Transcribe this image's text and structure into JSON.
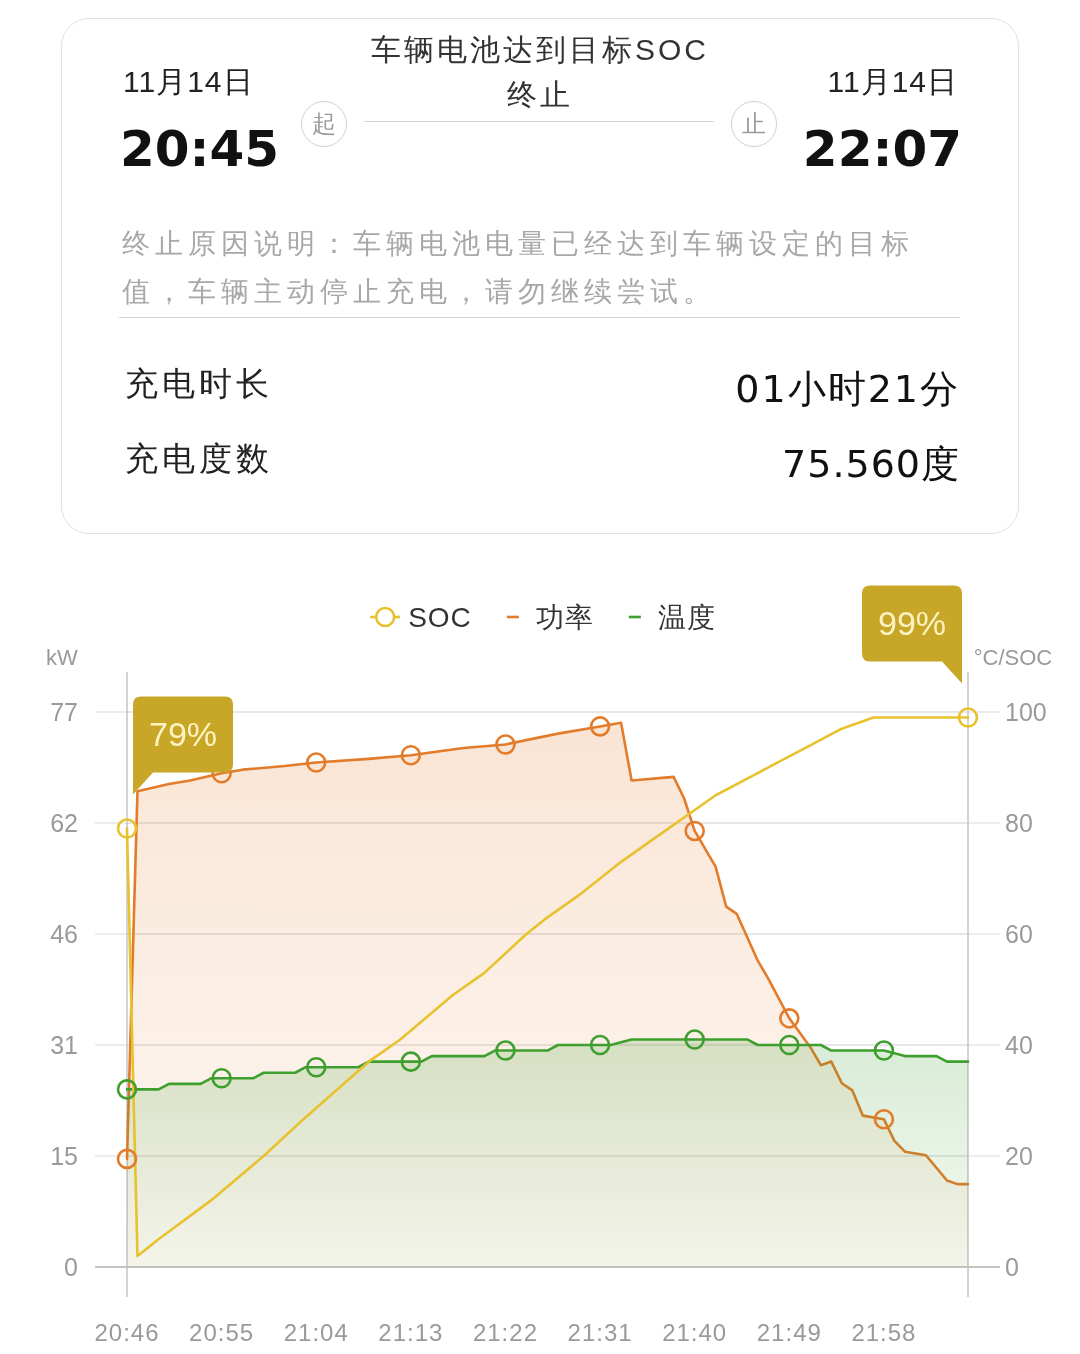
{
  "chart_data": [
    {
      "type": "other",
      "title": "车辆电池达到目标SOC终止",
      "annotations": [
        "11月14日",
        "20:45",
        "起",
        "止",
        "11月14日",
        "22:07",
        "终止原因说明：车辆电池电量已经达到车辆设定的目标值，车辆主动停止充电，请勿继续尝试。",
        "充电时长",
        "01小时21分",
        "充电度数",
        "75.560度"
      ]
    },
    {
      "type": "line",
      "ylabel": "kW",
      "y2label": "°C/SOC",
      "legend": "top",
      "grid": "y",
      "xlim": [
        20.7667,
        22.1
      ],
      "xticks": [
        {
          "value": 20.7667,
          "label": "20:46"
        },
        {
          "value": 20.9167,
          "label": "20:55"
        },
        {
          "value": 21.0667,
          "label": "21:04"
        },
        {
          "value": 21.2167,
          "label": "21:13"
        },
        {
          "value": 21.3667,
          "label": "21:22"
        },
        {
          "value": 21.5167,
          "label": "21:31"
        },
        {
          "value": 21.6667,
          "label": "21:40"
        },
        {
          "value": 21.8167,
          "label": "21:49"
        },
        {
          "value": 21.9667,
          "label": "21:58"
        }
      ],
      "ylim": [
        0,
        77
      ],
      "yticks": [
        0,
        {
          "value": 15.4,
          "label": "15"
        },
        {
          "value": 30.8,
          "label": "31"
        },
        {
          "value": 46.2,
          "label": "46"
        },
        {
          "value": 61.6,
          "label": "62"
        },
        77
      ],
      "y2lim": [
        0,
        100
      ],
      "y2ticks": [
        0,
        20,
        40,
        60,
        80,
        100
      ],
      "annotations": [
        "79%",
        "99%"
      ],
      "series": [
        {
          "name": "SOC",
          "type": "line",
          "axis": "y2",
          "color": "#e8c22e",
          "x": [
            20.7667,
            20.7833,
            20.8167,
            20.9,
            20.9833,
            21.05,
            21.15,
            21.2,
            21.2833,
            21.3333,
            21.4,
            21.4333,
            21.4833,
            21.55,
            21.6,
            21.65,
            21.7,
            21.75,
            21.8,
            21.85,
            21.8833,
            21.9,
            21.95,
            22.1
          ],
          "values": [
            79,
            2,
            5,
            12,
            20,
            27,
            37,
            41,
            49,
            53,
            60,
            63,
            67,
            73,
            77,
            81,
            85,
            88,
            91,
            94,
            96,
            97,
            99,
            99
          ]
        },
        {
          "name": "功率",
          "type": "area",
          "color": "#e27b2a",
          "x": [
            20.7667,
            20.7833,
            20.8333,
            20.8667,
            20.9167,
            20.95,
            21.0167,
            21.0667,
            21.15,
            21.2167,
            21.3,
            21.3667,
            21.45,
            21.5167,
            21.55,
            21.5667,
            21.6333,
            21.65,
            21.6667,
            21.7,
            21.7167,
            21.7333,
            21.7667,
            21.7833,
            21.8167,
            21.85,
            21.8667,
            21.8833,
            21.9,
            21.9167,
            21.9333,
            21.9667,
            21.9833,
            22,
            22.0333,
            22.0667,
            22.0833,
            22.1
          ],
          "values": [
            15,
            66,
            67,
            67.5,
            68.5,
            69,
            69.5,
            70,
            70.5,
            71,
            72,
            72.5,
            74,
            75,
            75.5,
            67.5,
            68,
            65,
            60.5,
            55.5,
            50,
            49,
            42.5,
            40,
            34.5,
            30.5,
            28,
            28.5,
            25.5,
            24.5,
            21,
            20.5,
            17.5,
            16,
            15.5,
            12,
            11.5,
            11.5
          ]
        },
        {
          "name": "温度",
          "type": "area",
          "axis": "y2",
          "color": "#3e9e2e",
          "x": [
            20.7667,
            20.8167,
            20.8333,
            20.8833,
            20.9,
            20.9167,
            20.9667,
            20.9833,
            21.0333,
            21.05,
            21.0667,
            21.1333,
            21.15,
            21.2167,
            21.2333,
            21.25,
            21.3333,
            21.35,
            21.3667,
            21.4333,
            21.45,
            21.5167,
            21.5333,
            21.5667,
            21.6667,
            21.75,
            21.7667,
            21.8167,
            21.8667,
            21.8833,
            21.9667,
            22,
            22.05,
            22.0667,
            22.1
          ],
          "values": [
            32,
            32,
            33,
            33,
            34,
            34,
            34,
            35,
            35,
            36,
            36,
            36,
            37,
            37,
            37,
            38,
            38,
            39,
            39,
            39,
            40,
            40,
            40,
            41,
            41,
            41,
            40,
            40,
            40,
            39,
            39,
            38,
            38,
            37,
            37
          ]
        },
        {
          "type": "scatter",
          "axis": "y2",
          "color": "#e8c22e",
          "marker": "circle",
          "x": [
            20.7667,
            22.1
          ],
          "values": [
            79,
            99
          ]
        },
        {
          "type": "scatter",
          "color": "#e27b2a",
          "marker": "circle",
          "x": [
            20.7667,
            20.9167,
            21.0667,
            21.2167,
            21.3667,
            21.5167,
            21.6667,
            21.8167,
            21.9667
          ],
          "values": [
            15,
            68.5,
            70,
            71,
            72.5,
            75,
            60.5,
            34.5,
            20.5
          ]
        },
        {
          "type": "scatter",
          "axis": "y2",
          "color": "#3e9e2e",
          "marker": "circle",
          "x": [
            20.7667,
            20.9167,
            21.0667,
            21.2167,
            21.3667,
            21.5167,
            21.6667,
            21.8167,
            21.9667
          ],
          "values": [
            32,
            34,
            36,
            37,
            39,
            40,
            41,
            40,
            39
          ]
        }
      ]
    }
  ]
}
